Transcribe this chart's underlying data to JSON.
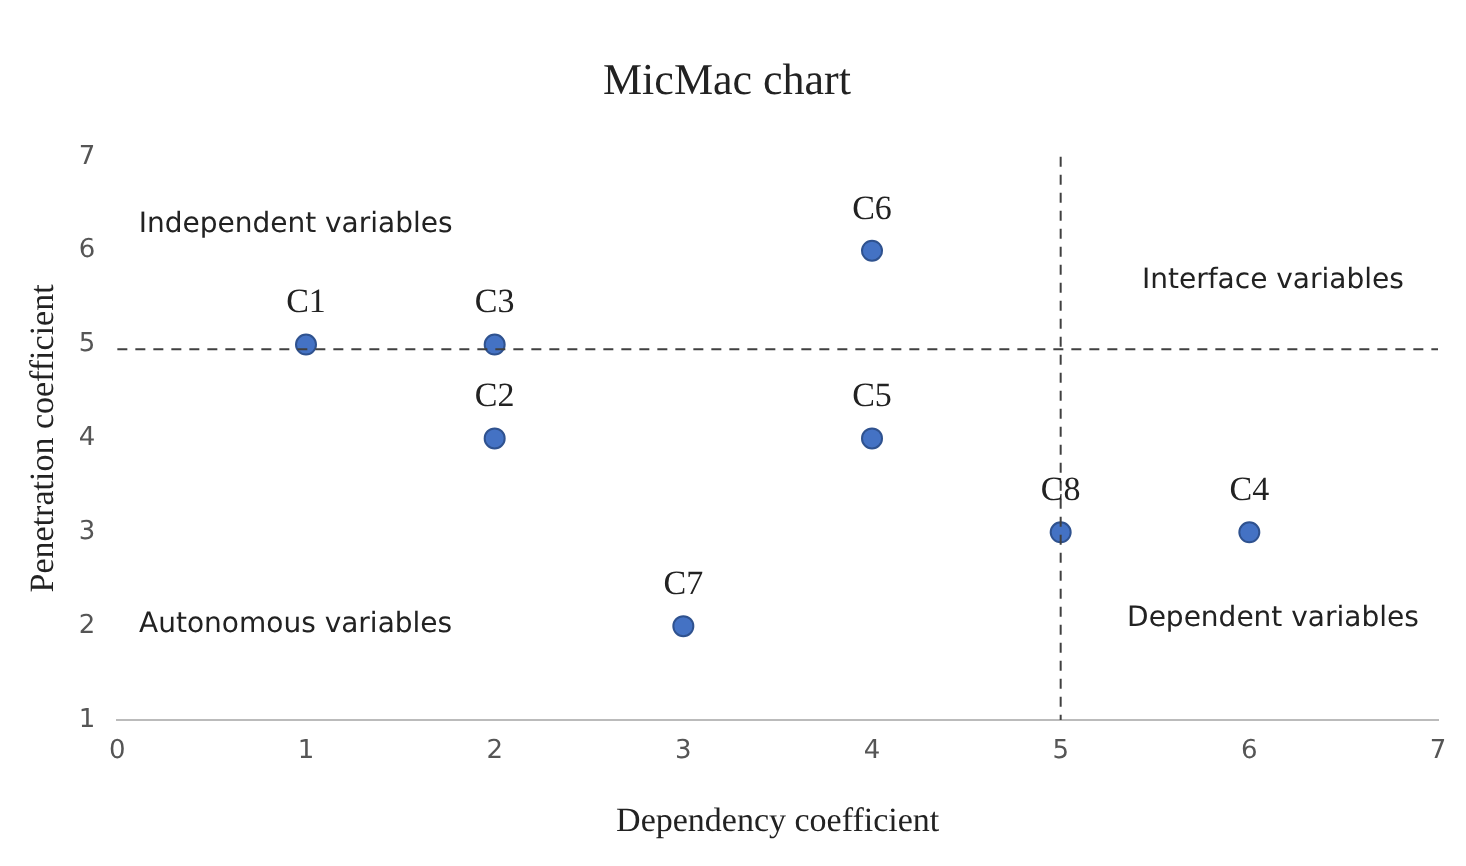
{
  "chart_data": {
    "type": "scatter",
    "title": "MicMac chart",
    "xlabel": "Dependency coefficient",
    "ylabel": "Penetration coefficient",
    "series": [
      {
        "color": "#4472c4",
        "x": [
          1,
          2,
          2,
          6,
          4,
          4,
          3,
          5
        ],
        "values": [
          5,
          4,
          5,
          3,
          4,
          6,
          2,
          3
        ]
      }
    ],
    "xlim": [
      0,
      7
    ],
    "xticks": [
      0,
      1,
      2,
      3,
      4,
      5,
      6,
      7
    ],
    "ylim": [
      1,
      7
    ],
    "yticks": [
      1,
      2,
      3,
      4,
      5,
      6,
      7
    ],
    "grid": false,
    "legend": false,
    "marker": "circle",
    "ref_lines": [
      {
        "axis": "x",
        "value": 5,
        "line_style": "dashed",
        "color": "#404040"
      },
      {
        "axis": "y",
        "value": 4.95,
        "line_style": "dashed",
        "color": "#404040"
      }
    ],
    "annotations": [
      {
        "text": "C1",
        "x": 1,
        "y": 5
      },
      {
        "text": "C2",
        "x": 2,
        "y": 4
      },
      {
        "text": "C3",
        "x": 2,
        "y": 5
      },
      {
        "text": "C4",
        "x": 6,
        "y": 3
      },
      {
        "text": "C5",
        "x": 4,
        "y": 4
      },
      {
        "text": "C6",
        "x": 4,
        "y": 6
      },
      {
        "text": "C7",
        "x": 3,
        "y": 2
      },
      {
        "text": "C8",
        "x": 5,
        "y": 3
      },
      "Independent variables",
      "Interface variables",
      "Autonomous variables",
      "Dependent variables"
    ]
  }
}
